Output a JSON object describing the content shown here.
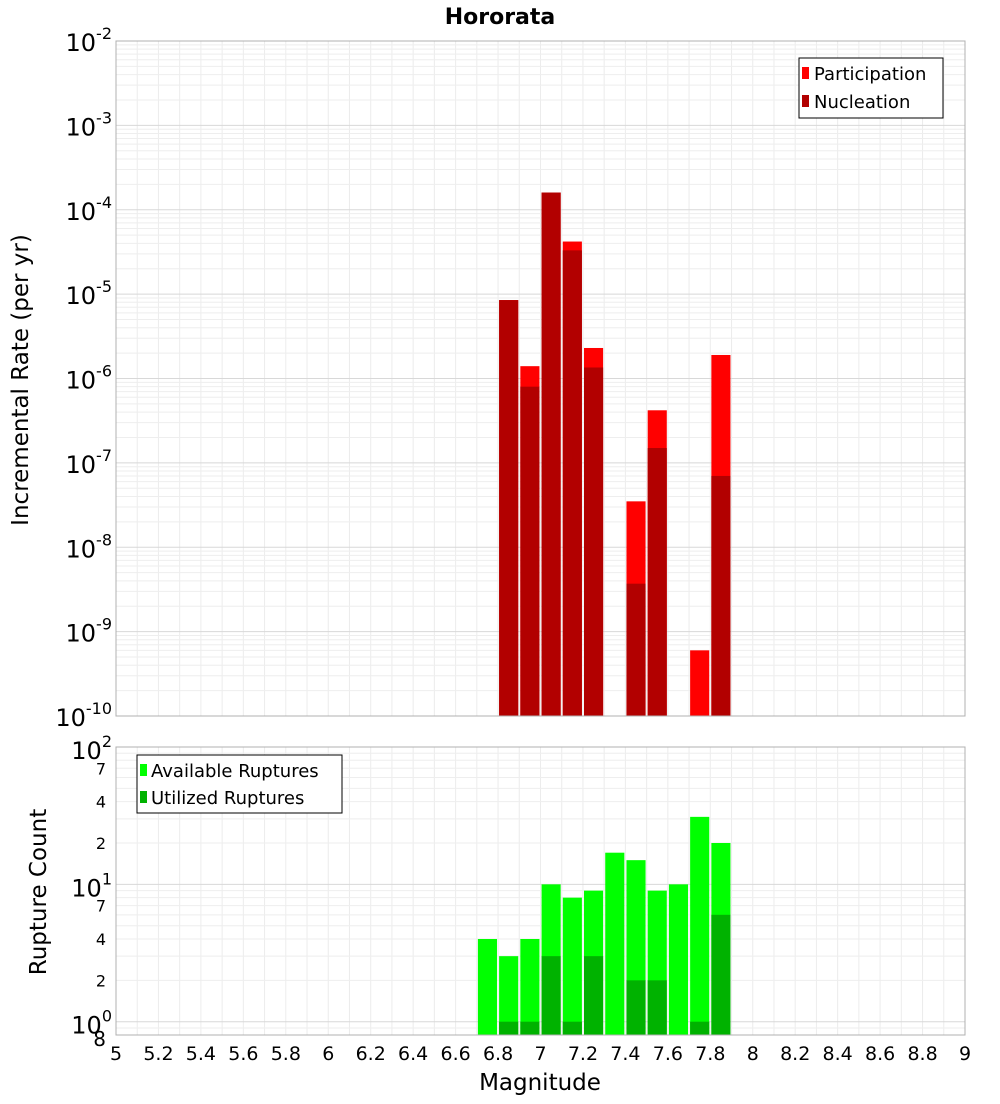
{
  "chart_data": [
    {
      "type": "bar",
      "title": "Hororata",
      "ylabel": "Incremental Rate (per yr)",
      "xlabel": "",
      "y_scale": "log",
      "ylim": [
        1e-10,
        0.01
      ],
      "xlim": [
        5,
        9
      ],
      "bar_width": 0.1,
      "grid": true,
      "legend_position": "top-right",
      "y_ticks": [
        {
          "base": "10",
          "exp": "-10"
        },
        {
          "base": "10",
          "exp": "-9"
        },
        {
          "base": "10",
          "exp": "-8"
        },
        {
          "base": "10",
          "exp": "-7"
        },
        {
          "base": "10",
          "exp": "-6"
        },
        {
          "base": "10",
          "exp": "-5"
        },
        {
          "base": "10",
          "exp": "-4"
        },
        {
          "base": "10",
          "exp": "-3"
        },
        {
          "base": "10",
          "exp": "-2"
        }
      ],
      "series": [
        {
          "name": "Participation",
          "color": "#ff0000",
          "x": [
            6.85,
            6.95,
            7.05,
            7.15,
            7.25,
            7.45,
            7.55,
            7.75,
            7.85
          ],
          "values": [
            8.5e-06,
            1.4e-06,
            0.00016,
            4.2e-05,
            2.3e-06,
            3.5e-08,
            4.2e-07,
            6e-10,
            1.9e-06
          ]
        },
        {
          "name": "Nucleation",
          "color": "#b20000",
          "x": [
            6.85,
            6.95,
            7.05,
            7.15,
            7.25,
            7.45,
            7.55,
            7.85
          ],
          "values": [
            8.5e-06,
            8e-07,
            0.00016,
            3.3e-05,
            1.35e-06,
            3.7e-09,
            1.5e-07,
            7e-08
          ]
        }
      ]
    },
    {
      "type": "bar",
      "title": "",
      "ylabel": "Rupture Count",
      "xlabel": "Magnitude",
      "y_scale": "log",
      "ylim": [
        0.8,
        100
      ],
      "xlim": [
        5,
        9
      ],
      "bar_width": 0.1,
      "grid": true,
      "legend_position": "top-left",
      "x_ticks": [
        "5",
        "5.2",
        "5.4",
        "5.6",
        "5.8",
        "6",
        "6.2",
        "6.4",
        "6.6",
        "6.8",
        "7",
        "7.2",
        "7.4",
        "7.6",
        "7.8",
        "8",
        "8.2",
        "8.4",
        "8.6",
        "8.8",
        "9"
      ],
      "y_ticks": [
        {
          "base": "10",
          "exp": "0"
        },
        {
          "base": "2",
          "exp": ""
        },
        {
          "base": "4",
          "exp": ""
        },
        {
          "base": "7",
          "exp": ""
        },
        {
          "base": "10",
          "exp": "1"
        },
        {
          "base": "2",
          "exp": ""
        },
        {
          "base": "4",
          "exp": ""
        },
        {
          "base": "7",
          "exp": ""
        },
        {
          "base": "10",
          "exp": "2"
        }
      ],
      "y_min_label": "8",
      "series": [
        {
          "name": "Available Ruptures",
          "color": "#00ff00",
          "x": [
            6.75,
            6.85,
            6.95,
            7.05,
            7.15,
            7.25,
            7.35,
            7.45,
            7.55,
            7.65,
            7.75,
            7.85
          ],
          "values": [
            4,
            3,
            4,
            10,
            8,
            9,
            17,
            15,
            9,
            10,
            31,
            20
          ]
        },
        {
          "name": "Utilized Ruptures",
          "color": "#00b200",
          "x": [
            6.85,
            6.95,
            7.05,
            7.15,
            7.25,
            7.45,
            7.55,
            7.75,
            7.85
          ],
          "values": [
            1,
            1,
            3,
            1,
            3,
            2,
            2,
            1,
            6
          ]
        }
      ]
    }
  ]
}
